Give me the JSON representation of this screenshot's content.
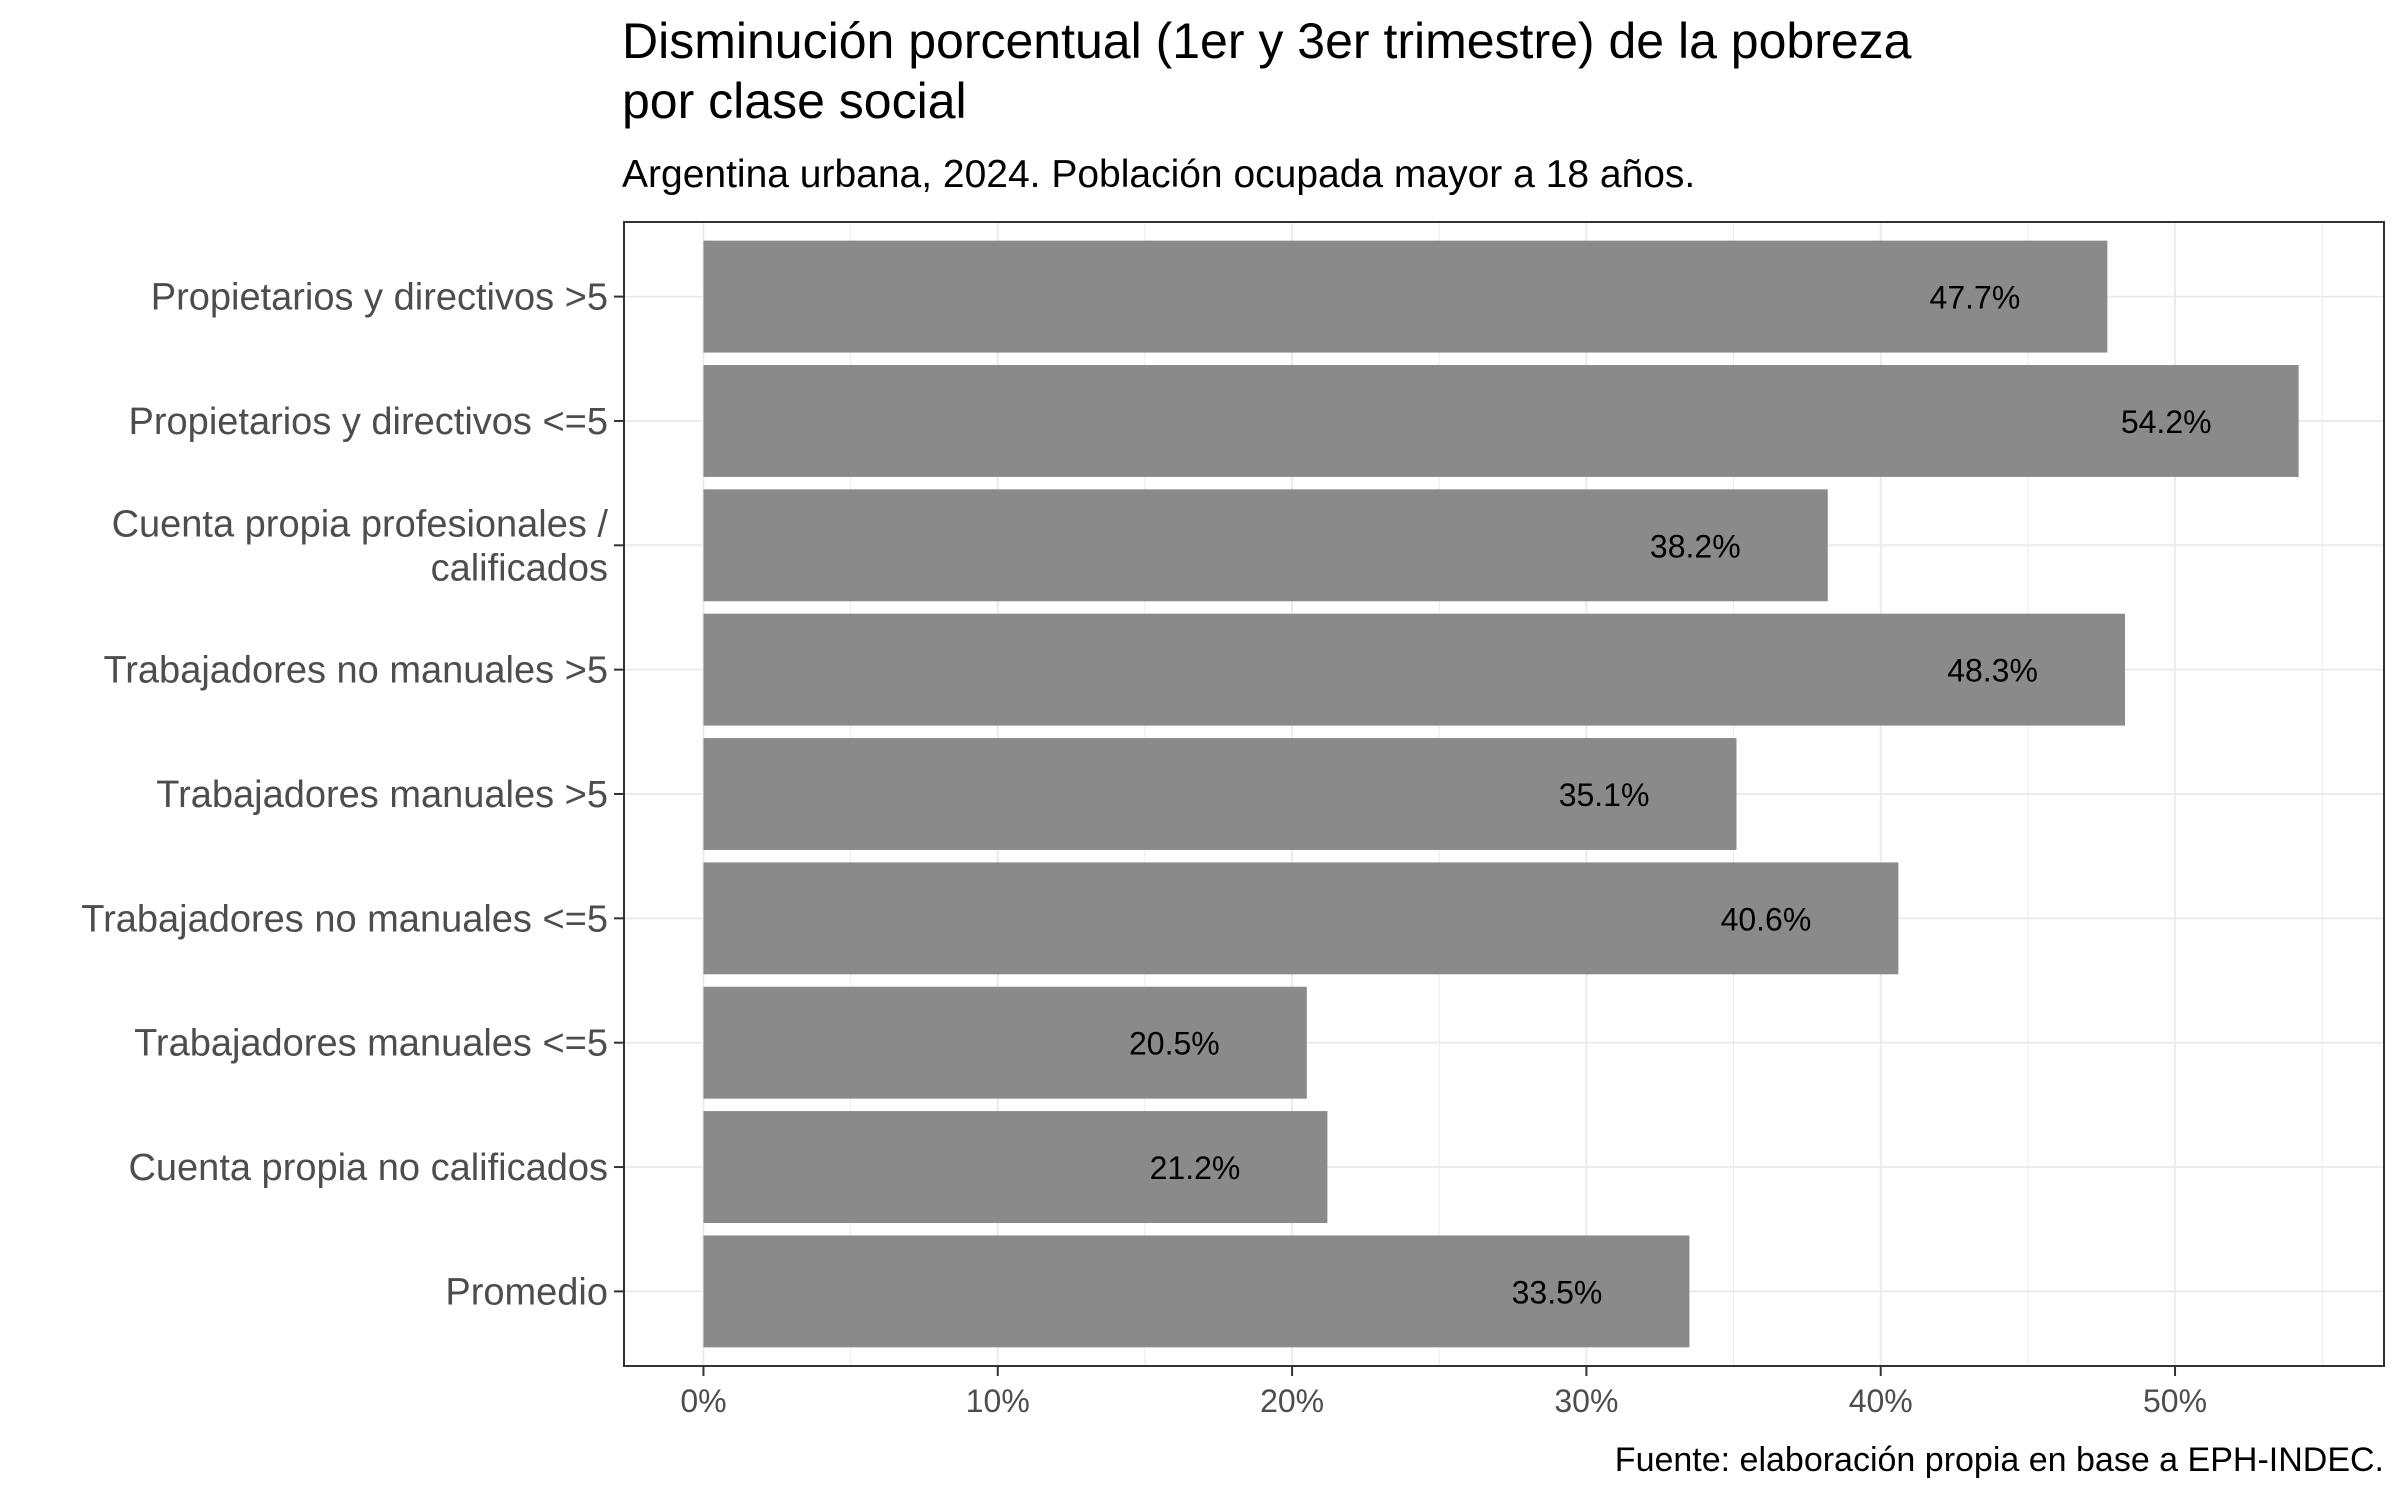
{
  "chart_data": {
    "type": "bar",
    "orientation": "horizontal",
    "title": "Disminución porcentual (1er y 3er trimestre) de la pobreza\npor clase social",
    "subtitle": "Argentina urbana, 2024. Población ocupada mayor a 18 años.",
    "caption": "Fuente: elaboración propia en base a EPH-INDEC.",
    "xlabel": "",
    "ylabel": "",
    "categories": [
      "Propietarios y directivos >5",
      "Propietarios y directivos <=5",
      "Cuenta propia profesionales /\ncalificados",
      "Trabajadores no manuales >5",
      "Trabajadores manuales >5",
      "Trabajadores no manuales <=5",
      "Trabajadores manuales <=5",
      "Cuenta propia no calificados",
      "Promedio"
    ],
    "values": [
      47.7,
      54.2,
      38.2,
      48.3,
      35.1,
      40.6,
      20.5,
      21.2,
      33.5
    ],
    "data_labels": [
      "47.7%",
      "54.2%",
      "38.2%",
      "48.3%",
      "35.1%",
      "40.6%",
      "20.5%",
      "21.2%",
      "33.5%"
    ],
    "x_ticks": [
      0,
      10,
      20,
      30,
      40,
      50
    ],
    "x_tick_labels": [
      "0%",
      "10%",
      "20%",
      "30%",
      "40%",
      "50%"
    ],
    "xlim": [
      -2.7,
      57.1
    ],
    "grid": true,
    "bar_color": "#8a8a8a",
    "grid_color": "#ebebeb",
    "panel_border_color": "#333333"
  }
}
